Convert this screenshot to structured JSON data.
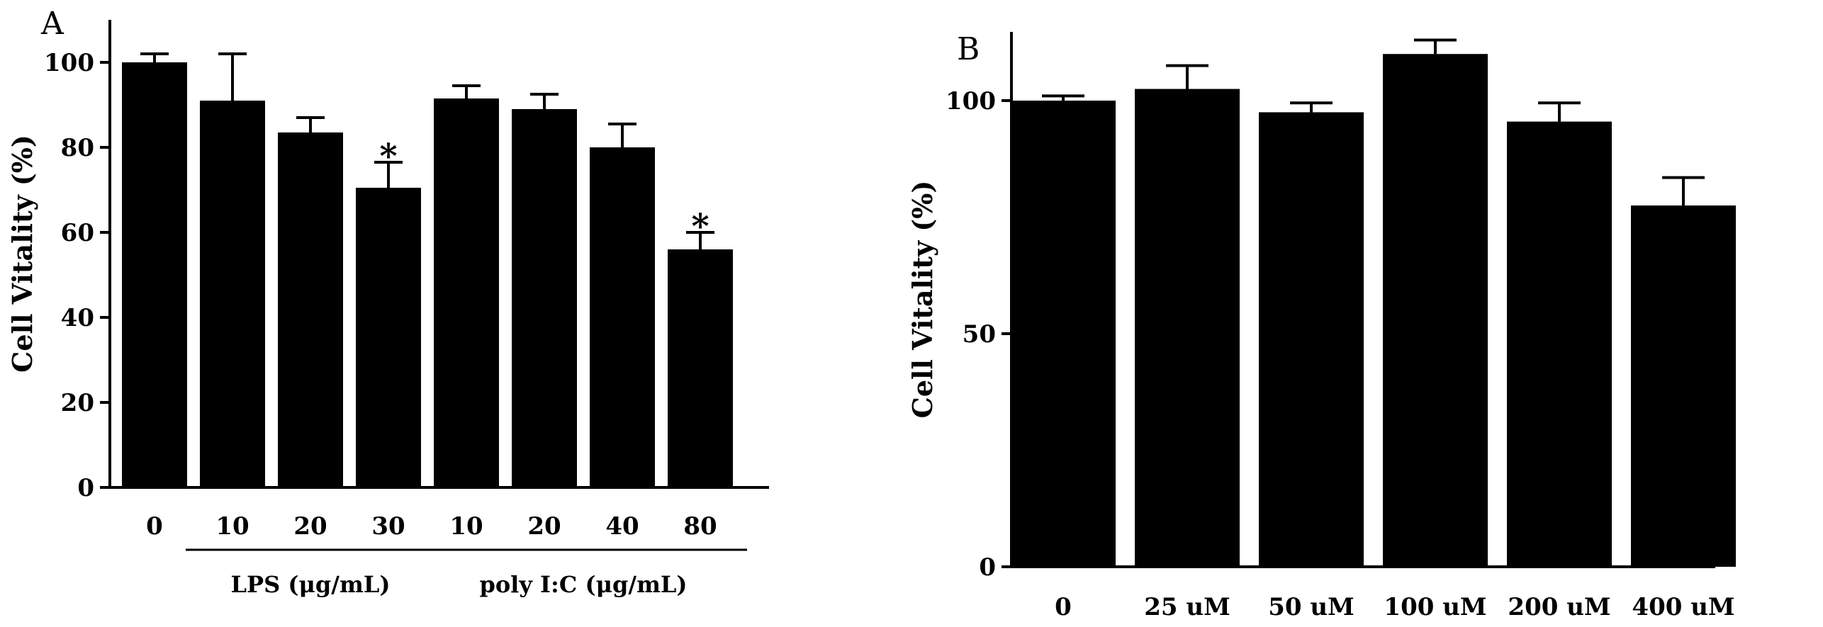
{
  "chart_data": [
    {
      "type": "bar",
      "panel_label": "A",
      "ylabel": "Cell Vitality (%)",
      "ylim": [
        0,
        100
      ],
      "yticks": [
        0,
        20,
        40,
        60,
        80,
        100
      ],
      "grid": false,
      "categories": [
        "0",
        "10",
        "20",
        "30",
        "10",
        "20",
        "40",
        "80"
      ],
      "values": [
        100,
        91,
        83.5,
        70.5,
        91.5,
        89,
        80,
        56
      ],
      "errors": [
        2,
        11,
        3.5,
        6,
        3,
        3.5,
        5.5,
        4
      ],
      "significant": [
        false,
        false,
        false,
        true,
        false,
        false,
        false,
        true
      ],
      "significance_marker": "*",
      "groups": [
        {
          "label": "LPS (μg/mL)",
          "from": 1,
          "to": 3
        },
        {
          "label": "poly I:C (μg/mL)",
          "from": 4,
          "to": 7
        }
      ],
      "bar_color": "#000000"
    },
    {
      "type": "bar",
      "panel_label": "B",
      "ylabel": "Cell Vitality (%)",
      "ylim": [
        0,
        100
      ],
      "yticks": [
        0,
        50,
        100
      ],
      "grid": false,
      "categories": [
        "0",
        "25 uM",
        "50 uM",
        "100 uM",
        "200 uM",
        "400 uM"
      ],
      "values": [
        100,
        102.5,
        97.5,
        110,
        95.5,
        77.5
      ],
      "errors": [
        1,
        5,
        2,
        3,
        4,
        6
      ],
      "bar_color": "#000000"
    }
  ]
}
